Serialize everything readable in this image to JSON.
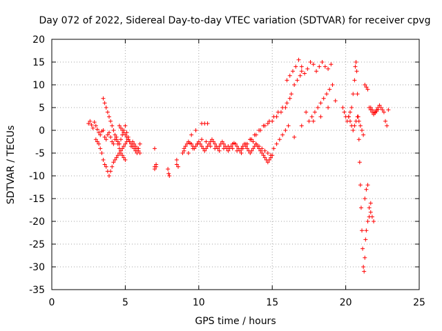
{
  "chart_data": {
    "type": "scatter",
    "title": "Day 072 of 2022, Sidereal Day-to-day VTEC variation (SDTVAR) for receiver cpvg",
    "xlabel": "GPS time / hours",
    "ylabel": "SDTVAR / TECUs",
    "xlim": [
      0,
      25
    ],
    "ylim": [
      -35,
      20
    ],
    "xticks": [
      0,
      5,
      10,
      15,
      20,
      25
    ],
    "yticks": [
      -35,
      -30,
      -25,
      -20,
      -15,
      -10,
      -5,
      0,
      5,
      10,
      15,
      20
    ],
    "grid": true,
    "marker": "+",
    "color": "#ff0000",
    "series": [
      {
        "name": "SDTVAR",
        "x": [
          2.5,
          2.6,
          2.7,
          2.8,
          2.9,
          3.0,
          3.1,
          3.2,
          3.3,
          3.4,
          3.5,
          3.6,
          3.7,
          3.8,
          3.9,
          4.0,
          4.1,
          4.2,
          4.3,
          4.4,
          4.5,
          4.6,
          4.7,
          4.8,
          4.9,
          5.0,
          5.1,
          5.2,
          5.3,
          5.4,
          5.5,
          5.6,
          5.7,
          5.8,
          5.9,
          6.0,
          3.0,
          3.1,
          3.2,
          3.3,
          3.4,
          3.5,
          3.6,
          3.7,
          3.8,
          3.5,
          3.6,
          3.7,
          3.8,
          3.9,
          4.0,
          4.1,
          4.2,
          4.3,
          4.4,
          4.5,
          4.6,
          4.7,
          4.8,
          4.9,
          5.0,
          3.9,
          4.0,
          4.1,
          4.2,
          4.3,
          4.4,
          4.5,
          4.6,
          4.7,
          4.8,
          4.9,
          5.0,
          5.1,
          5.2,
          4.6,
          4.7,
          4.8,
          4.9,
          5.0,
          5.1,
          5.2,
          5.3,
          5.4,
          5.5,
          5.6,
          5.7,
          5.8,
          5.9,
          6.0,
          7.0,
          7.0,
          7.0,
          7.1,
          7.1,
          7.9,
          7.95,
          8.0,
          8.5,
          8.5,
          8.6,
          8.9,
          9.0,
          9.1,
          9.2,
          9.3,
          9.4,
          9.5,
          9.6,
          9.7,
          9.8,
          9.9,
          10.0,
          10.1,
          10.2,
          10.3,
          10.4,
          10.5,
          10.6,
          10.7,
          10.8,
          10.9,
          11.0,
          11.1,
          11.2,
          11.3,
          11.4,
          11.5,
          11.6,
          11.7,
          11.8,
          11.9,
          12.0,
          12.1,
          12.2,
          12.3,
          12.4,
          12.5,
          12.6,
          12.7,
          12.8,
          12.9,
          13.0,
          13.1,
          13.2,
          13.3,
          13.4,
          13.5,
          13.6,
          13.7,
          13.8,
          13.9,
          14.0,
          14.1,
          14.2,
          14.3,
          14.4,
          14.5,
          14.6,
          14.7,
          14.8,
          14.9,
          15.0,
          9.0,
          9.3,
          9.6,
          9.9,
          10.2,
          10.5,
          10.8,
          11.1,
          11.4,
          11.7,
          12.0,
          12.3,
          12.6,
          12.9,
          13.2,
          13.5,
          13.8,
          14.1,
          14.4,
          14.7,
          15.0,
          15.3,
          15.6,
          15.9,
          13.5,
          13.7,
          13.9,
          14.1,
          14.3,
          14.5,
          14.7,
          14.9,
          15.1,
          15.3,
          15.5,
          15.7,
          15.9,
          16.1,
          13.0,
          13.3,
          13.6,
          13.9,
          14.2,
          14.5,
          14.8,
          15.1,
          15.4,
          15.7,
          16.0,
          16.2,
          16.3,
          16.5,
          16.7,
          16.9,
          17.0,
          10.2,
          10.4,
          10.6,
          9.8,
          9.5,
          16.0,
          16.2,
          16.4,
          16.6,
          16.8,
          17.0,
          17.2,
          17.4,
          17.6,
          17.8,
          18.0,
          18.2,
          18.4,
          18.6,
          18.8,
          19.0,
          17.5,
          17.7,
          17.9,
          18.1,
          18.3,
          18.5,
          18.7,
          18.9,
          19.1,
          17.3,
          17.8,
          18.3,
          18.8,
          19.3,
          16.5,
          17.0,
          19.8,
          19.9,
          20.0,
          20.1,
          20.2,
          20.3,
          20.4,
          20.5,
          20.6,
          20.65,
          20.7,
          20.75,
          20.8,
          20.85,
          20.9,
          20.95,
          21.0,
          21.05,
          21.1,
          21.15,
          21.2,
          21.25,
          21.3,
          21.35,
          21.4,
          21.5,
          21.6,
          21.7,
          21.8,
          21.9,
          20.2,
          20.3,
          20.4,
          20.5,
          20.6,
          20.7,
          20.8,
          20.9,
          21.0,
          21.1,
          21.2,
          21.3,
          21.4,
          21.5,
          21.6,
          21.7,
          21.3,
          21.4,
          21.5,
          21.6,
          21.7,
          21.8,
          21.9,
          22.0,
          22.1,
          22.2,
          22.3,
          22.4,
          22.5,
          22.6,
          22.7,
          22.8,
          22.9,
          21.7,
          21.8,
          21.9,
          22.0,
          22.1,
          22.2
        ],
        "y": [
          1.5,
          2.0,
          1.2,
          0.5,
          1.8,
          1.0,
          0.2,
          -0.5,
          -1.0,
          -0.2,
          0.0,
          -1.5,
          -2.0,
          -1.0,
          -0.5,
          -1.5,
          -2.5,
          -3.0,
          -2.0,
          -1.5,
          -2.5,
          -3.0,
          -2.0,
          -1.0,
          0.0,
          1.0,
          -0.5,
          -1.5,
          -2.5,
          -3.5,
          -2.5,
          -3.0,
          -3.5,
          -4.0,
          -4.5,
          -5.0,
          -2.0,
          -2.5,
          -3.0,
          -4.0,
          -5.0,
          -6.5,
          -7.5,
          -8.0,
          -9.0,
          7.0,
          6.0,
          5.0,
          4.0,
          3.0,
          2.0,
          1.0,
          0.0,
          -1.0,
          -2.0,
          -3.0,
          -4.0,
          -5.0,
          -5.5,
          -6.0,
          -6.5,
          -10.0,
          -9.0,
          -8.0,
          -7.0,
          -6.5,
          -6.0,
          -5.5,
          -5.0,
          -4.5,
          -4.0,
          -3.5,
          -3.0,
          -2.5,
          -2.0,
          1.0,
          0.5,
          0.0,
          -0.5,
          -1.0,
          -1.5,
          -2.0,
          -2.5,
          -3.0,
          -3.5,
          -4.0,
          -4.5,
          -5.0,
          -4.0,
          -3.0,
          -4.0,
          -8.0,
          -8.5,
          -7.5,
          -8.0,
          -8.5,
          -9.5,
          -10.0,
          -6.5,
          -7.5,
          -8.0,
          -5.0,
          -4.0,
          -3.5,
          -3.0,
          -2.5,
          -2.8,
          -3.0,
          -3.5,
          -4.0,
          -3.5,
          -3.0,
          -2.5,
          -3.0,
          -3.5,
          -4.0,
          -4.5,
          -4.0,
          -3.5,
          -3.0,
          -2.5,
          -2.0,
          -2.5,
          -3.0,
          -3.5,
          -4.0,
          -3.5,
          -3.0,
          -2.5,
          -3.0,
          -3.5,
          -4.0,
          -4.5,
          -4.0,
          -3.5,
          -3.0,
          -2.8,
          -3.0,
          -3.5,
          -4.0,
          -4.5,
          -4.0,
          -3.5,
          -3.0,
          -3.5,
          -4.0,
          -4.5,
          -5.0,
          -4.5,
          -4.0,
          -3.5,
          -3.0,
          -3.5,
          -4.0,
          -4.5,
          -5.0,
          -5.5,
          -6.0,
          -6.5,
          -7.0,
          -6.5,
          -6.0,
          -5.5,
          -4.5,
          -5.0,
          -4.0,
          -3.0,
          -2.0,
          -2.5,
          -3.5,
          -4.0,
          -4.5,
          -4.0,
          -3.5,
          -4.0,
          -4.5,
          -5.0,
          -3.0,
          -2.0,
          -1.0,
          0.0,
          1.0,
          1.5,
          2.0,
          3.0,
          4.0,
          5.0,
          -2.0,
          -2.5,
          -3.0,
          -3.5,
          -4.0,
          -4.5,
          -5.0,
          -5.5,
          -4.0,
          -3.0,
          -2.0,
          -1.0,
          0.0,
          1.0,
          -4.0,
          -3.0,
          -2.0,
          -1.0,
          0.0,
          1.0,
          2.0,
          3.0,
          4.0,
          5.0,
          6.0,
          7.0,
          8.0,
          10.0,
          11.0,
          12.0,
          13.0,
          1.5,
          1.5,
          1.5,
          0.0,
          -1.0,
          11.0,
          12.0,
          13.0,
          14.0,
          15.5,
          14.0,
          12.5,
          13.5,
          15.0,
          14.5,
          13.0,
          14.0,
          15.0,
          14.0,
          13.5,
          14.5,
          2.0,
          3.0,
          4.0,
          5.0,
          6.0,
          7.0,
          8.0,
          9.0,
          10.0,
          4.0,
          2.0,
          3.0,
          5.0,
          6.5,
          -1.5,
          1.0,
          5.0,
          4.0,
          3.0,
          2.0,
          3.0,
          4.0,
          5.0,
          8.0,
          11.0,
          14.0,
          15.0,
          13.0,
          8.0,
          3.0,
          -2.0,
          -7.0,
          -12.0,
          -17.0,
          -22.0,
          -26.0,
          -30.0,
          -31.0,
          -28.0,
          -24.0,
          -22.0,
          -20.0,
          -19.0,
          -18.0,
          -19.0,
          -20.0,
          3.0,
          2.0,
          1.0,
          0.0,
          1.0,
          2.0,
          3.0,
          2.0,
          1.0,
          0.0,
          -1.0,
          -15.0,
          -13.0,
          -12.0,
          -17.0,
          -16.0,
          10.0,
          9.5,
          9.0,
          5.0,
          4.5,
          4.0,
          3.5,
          4.0,
          4.5,
          5.0,
          5.5,
          5.0,
          4.5,
          4.0,
          2.0,
          1.0,
          4.5,
          5.0,
          4.5,
          4.0,
          3.8,
          4.2,
          4.6
        ]
      }
    ]
  }
}
